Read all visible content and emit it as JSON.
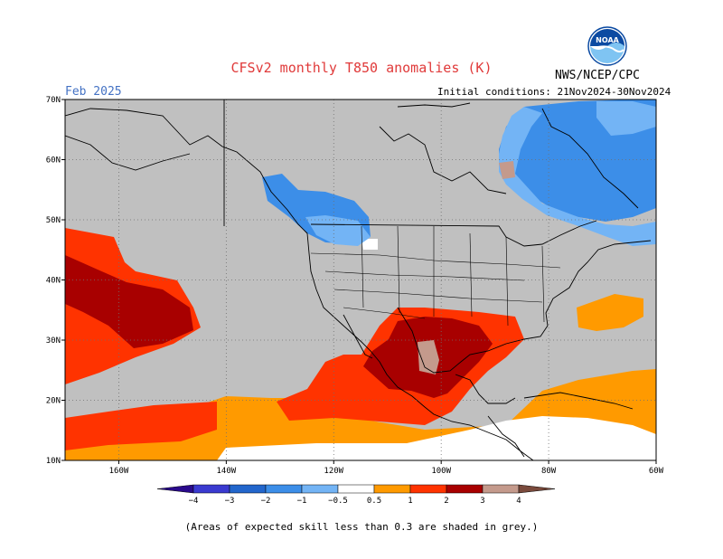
{
  "header": {
    "title": "CFSv2 monthly T850 anomalies (K)",
    "month": "Feb 2025",
    "initial_conditions": "Initial conditions: 21Nov2024-30Nov2024",
    "agency": "NWS/NCEP/CPC",
    "logo_text": "NOAA"
  },
  "map": {
    "projection": "lat-lon",
    "lon_range": [
      -170,
      -60
    ],
    "lat_range": [
      10,
      70
    ],
    "lat_ticks": [
      {
        "value": 70,
        "label": "70N"
      },
      {
        "value": 60,
        "label": "60N"
      },
      {
        "value": 50,
        "label": "50N"
      },
      {
        "value": 40,
        "label": "40N"
      },
      {
        "value": 30,
        "label": "30N"
      },
      {
        "value": 20,
        "label": "20N"
      },
      {
        "value": 10,
        "label": "10N"
      }
    ],
    "lon_ticks": [
      {
        "value": -160,
        "label": "160W"
      },
      {
        "value": -140,
        "label": "140W"
      },
      {
        "value": -120,
        "label": "120W"
      },
      {
        "value": -100,
        "label": "100W"
      },
      {
        "value": -80,
        "label": "80W"
      },
      {
        "value": -60,
        "label": "60W"
      }
    ],
    "gridlines": "dotted",
    "low_skill_color": "#c0c0c0"
  },
  "colorbar": {
    "levels": [
      {
        "label": "−4",
        "value": -4
      },
      {
        "label": "−3",
        "value": -3
      },
      {
        "label": "−2",
        "value": -2
      },
      {
        "label": "−1",
        "value": -1
      },
      {
        "label": "−0.5",
        "value": -0.5
      },
      {
        "label": "0.5",
        "value": 0.5
      },
      {
        "label": "1",
        "value": 1
      },
      {
        "label": "2",
        "value": 2
      },
      {
        "label": "3",
        "value": 3
      },
      {
        "label": "4",
        "value": 4
      }
    ],
    "colors": [
      "#2a0a8c",
      "#3a3ad0",
      "#2266cc",
      "#3c8ee8",
      "#73b4f5",
      "#ffffff",
      "#ff9a00",
      "#ff3300",
      "#a80000",
      "#c49a8c",
      "#7a4a3c"
    ]
  },
  "footnote": "(Areas of expected skill less than 0.3 are shaded in grey.)"
}
